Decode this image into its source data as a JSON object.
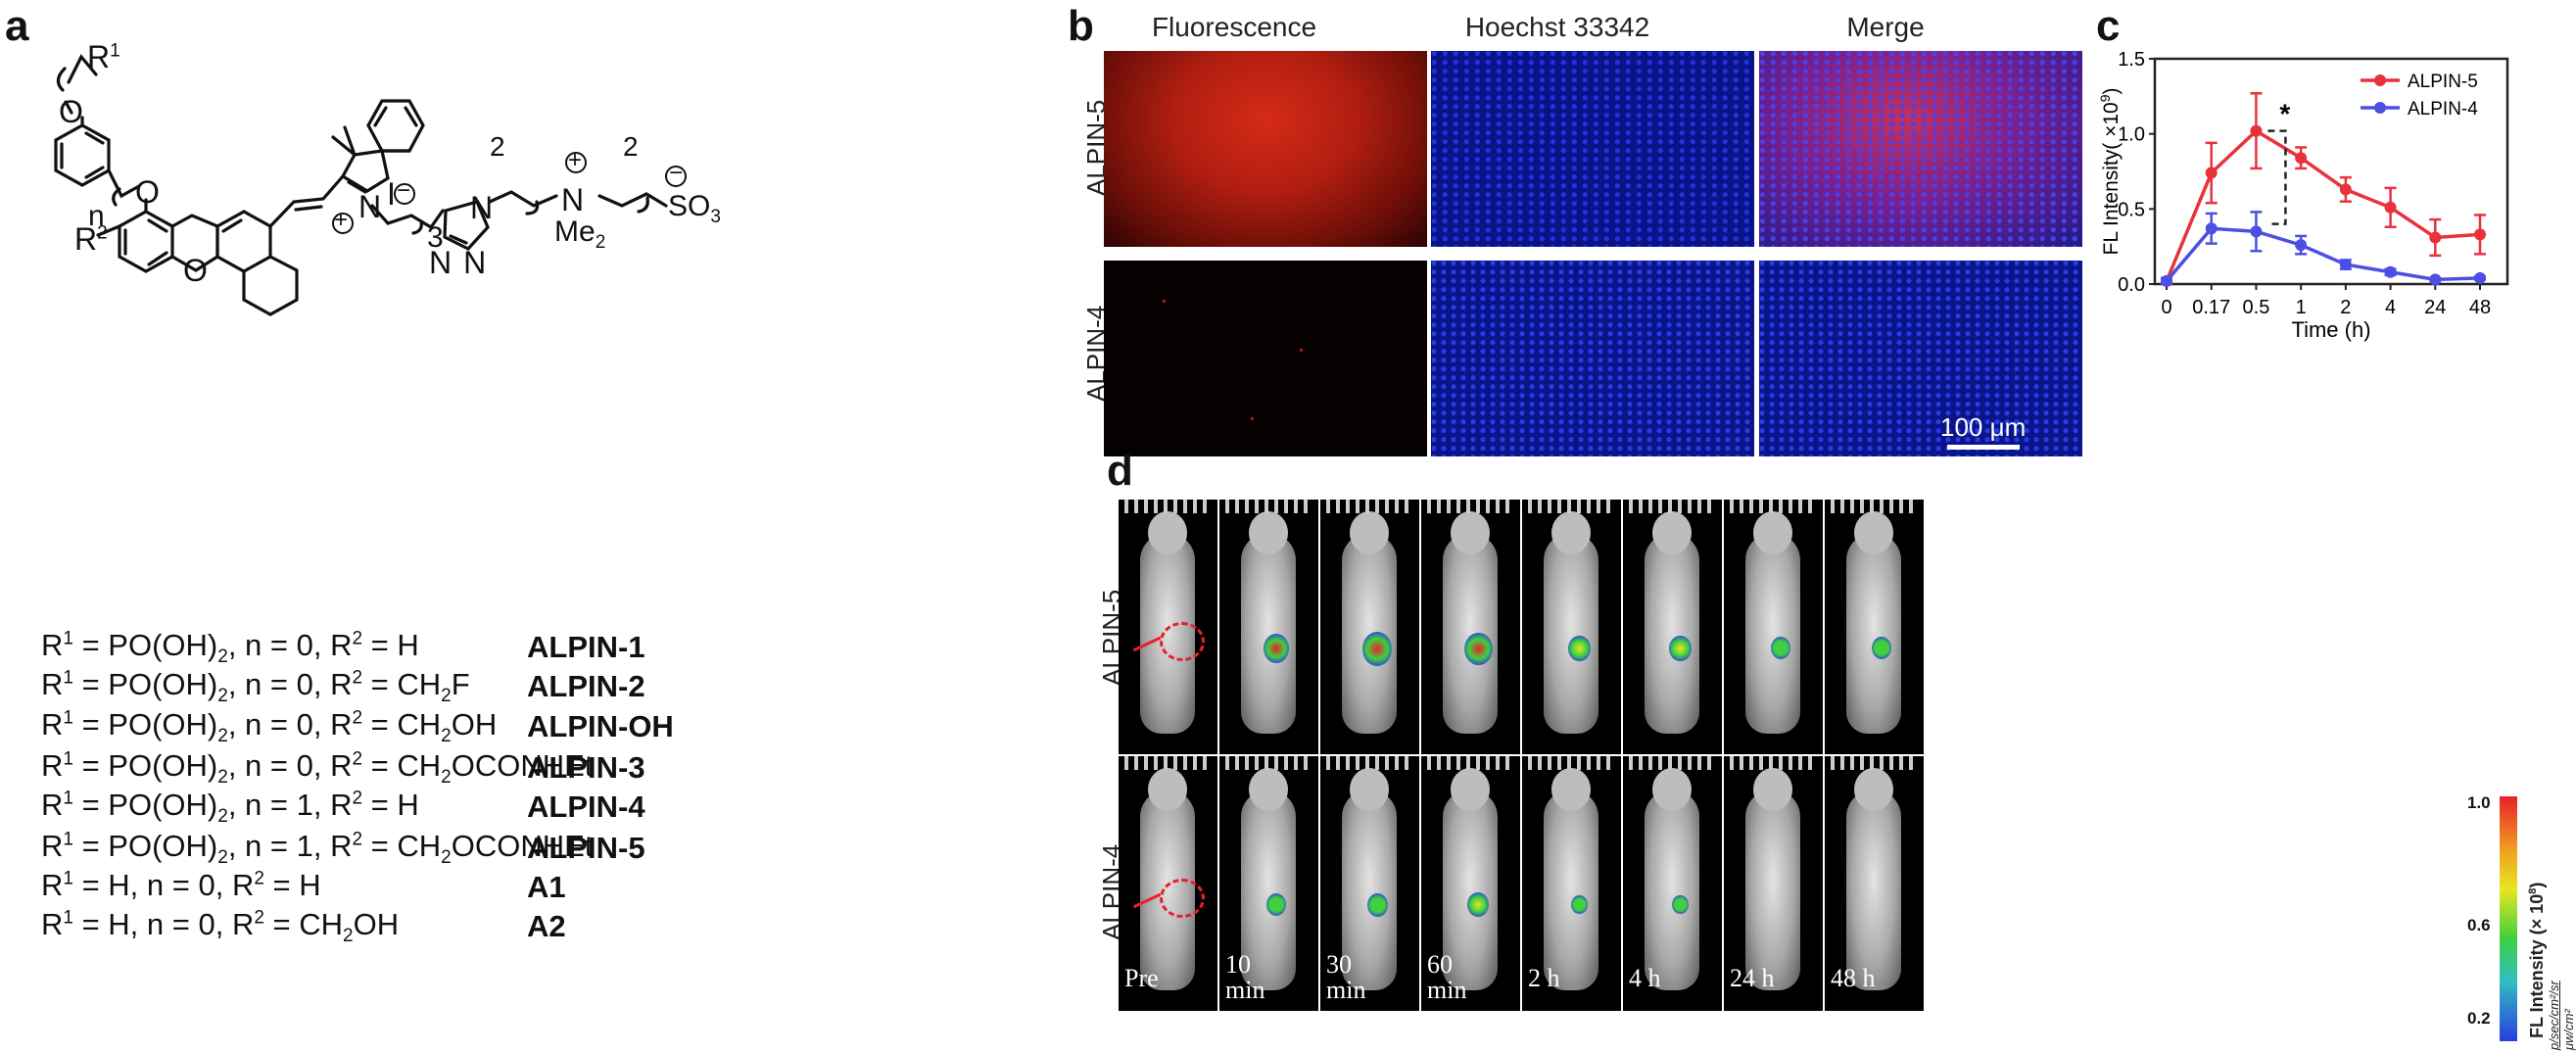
{
  "panels": {
    "a": "a",
    "b": "b",
    "c": "c",
    "d": "d"
  },
  "structure": {
    "r1": "R",
    "r1sup": "1",
    "o": "O",
    "n": "n",
    "r2": "R",
    "r2sup": "2",
    "iodide": "I",
    "minus": "−",
    "plus": "+",
    "three": "3",
    "n1": "N",
    "n2": "N",
    "n3": "N",
    "nq": "N",
    "me2": "Me",
    "me2sub": "2",
    "so3": "SO",
    "so3sub": "3",
    "two_a": "2",
    "two_b": "2"
  },
  "compounds": [
    {
      "parts": [
        "R",
        "1",
        " = PO(OH)",
        "2",
        ", n = 0, R",
        "2",
        " = H",
        ""
      ],
      "name": "ALPIN-1"
    },
    {
      "parts": [
        "R",
        "1",
        " = PO(OH)",
        "2",
        ", n = 0, R",
        "2",
        " = CH",
        "2",
        "F"
      ],
      "name": "ALPIN-2"
    },
    {
      "parts": [
        "R",
        "1",
        " = PO(OH)",
        "2",
        ", n = 0, R",
        "2",
        " = CH",
        "2",
        "OH"
      ],
      "name": "ALPIN-OH"
    },
    {
      "parts": [
        "R",
        "1",
        " = PO(OH)",
        "2",
        ", n = 0, R",
        "2",
        " = CH",
        "2",
        "OCONHEt"
      ],
      "name": "ALPIN-3"
    },
    {
      "parts": [
        "R",
        "1",
        " = PO(OH)",
        "2",
        ", n = 1, R",
        "2",
        " = H",
        ""
      ],
      "name": "ALPIN-4"
    },
    {
      "parts": [
        "R",
        "1",
        " = PO(OH)",
        "2",
        ", n = 1, R",
        "2",
        " = CH",
        "2",
        "OCONHEt"
      ],
      "name": "ALPIN-5"
    },
    {
      "parts": [
        "R",
        "1",
        " = H, n = 0, R",
        "2",
        " = H",
        "",
        "",
        "",
        ""
      ],
      "name": "A1"
    },
    {
      "parts": [
        "R",
        "1",
        " = H, n = 0, R",
        "2",
        " = CH",
        "2",
        "OH",
        "",
        ""
      ],
      "name": "A2"
    }
  ],
  "microscopy": {
    "columns": [
      "Fluorescence",
      "Hoechst 33342",
      "Merge"
    ],
    "rows": [
      "ALPIN-5",
      "ALPIN-4"
    ],
    "scale_bar": "100 μm",
    "colors": {
      "red": "#e0201c",
      "blue": "#1f2fd8"
    }
  },
  "chart_data": {
    "type": "line",
    "categories": [
      "0",
      "0.17",
      "0.5",
      "1",
      "2",
      "4",
      "24",
      "48"
    ],
    "xlabel": "Time (h)",
    "ylabel": "FL Intensity( ×10",
    "ylabel_sup": "9",
    "ylabel_end": ")",
    "ylim": [
      0,
      1.5
    ],
    "yticks": [
      "0.0",
      "0.5",
      "1.0",
      "1.5"
    ],
    "legend_position": "top-right",
    "significance": "*",
    "series": [
      {
        "name": "ALPIN-5",
        "color": "#e8323c",
        "values": [
          0.02,
          0.74,
          1.02,
          0.84,
          0.63,
          0.51,
          0.31,
          0.33
        ],
        "errors": [
          0.02,
          0.2,
          0.25,
          0.07,
          0.08,
          0.13,
          0.12,
          0.13
        ]
      },
      {
        "name": "ALPIN-4",
        "color": "#4b4fe3",
        "values": [
          0.02,
          0.37,
          0.35,
          0.26,
          0.13,
          0.08,
          0.03,
          0.04
        ],
        "errors": [
          0.02,
          0.1,
          0.13,
          0.06,
          0.03,
          0.02,
          0.01,
          0.01
        ]
      }
    ]
  },
  "imaging": {
    "rows": [
      "ALPIN-5",
      "ALPIN-4"
    ],
    "times": [
      "Pre",
      "10\nmin",
      "30\nmin",
      "60\nmin",
      "2 h",
      "4 h",
      "24 h",
      "48 h"
    ],
    "signal_alpin5": [
      0,
      0.75,
      1.0,
      0.95,
      0.6,
      0.6,
      0.45,
      0.45
    ],
    "signal_alpin4": [
      0,
      0.45,
      0.5,
      0.55,
      0.25,
      0.25,
      0,
      0
    ],
    "colorbar": {
      "max": "1.0",
      "mid": "0.6",
      "min": "0.2",
      "label": "FL Intensity (× 10",
      "label_sup": "8",
      "label_end": ")",
      "units_top": "p/sec/cm²/sr",
      "units_bottom": "μw/cm²"
    }
  }
}
